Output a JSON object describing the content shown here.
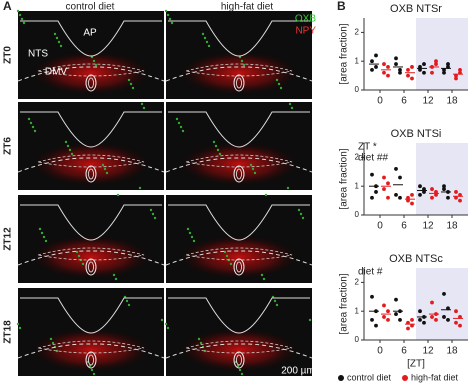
{
  "panel_a": {
    "label": "A",
    "columns": [
      "control diet",
      "high-fat diet"
    ],
    "rows": [
      "ZT0",
      "ZT6",
      "ZT12",
      "ZT18"
    ],
    "stains": [
      "OXB",
      "NPY"
    ],
    "regions": [
      "AP",
      "NTS",
      "DMV"
    ],
    "scale_bar": "200 µm"
  },
  "panel_b": {
    "label": "B"
  },
  "chart_data": [
    {
      "type": "scatter",
      "title": "OXB NTSr",
      "y_label": "[area fraction]",
      "x": [
        0,
        6,
        12,
        18
      ],
      "xlim": [
        -4,
        22
      ],
      "ylim": [
        0,
        2.5
      ],
      "yticks": [
        0,
        1,
        2
      ],
      "shaded_x": [
        9,
        22
      ],
      "series": [
        {
          "color": "#111111",
          "values": [
            [
              1.0,
              0.8,
              0.7,
              1.2
            ],
            [
              0.9,
              0.7,
              1.1,
              0.6
            ],
            [
              0.7,
              0.6,
              0.8,
              0.9
            ],
            [
              0.7,
              0.9,
              0.6,
              0.8
            ]
          ],
          "means": [
            0.9,
            0.8,
            0.75,
            0.75
          ]
        },
        {
          "color": "#e41a1c",
          "values": [
            [
              0.9,
              0.5,
              0.6,
              0.8
            ],
            [
              0.7,
              0.4,
              0.5,
              0.8
            ],
            [
              0.8,
              0.9,
              0.6,
              1.0
            ],
            [
              0.4,
              0.6,
              0.5,
              0.7
            ]
          ],
          "means": [
            0.7,
            0.6,
            0.8,
            0.55
          ]
        }
      ]
    },
    {
      "type": "scatter",
      "title": "OXB NTSi",
      "y_label": "[area fraction]",
      "annotations": [
        "ZT *",
        "diet ##"
      ],
      "x": [
        0,
        6,
        12,
        18
      ],
      "xlim": [
        -4,
        22
      ],
      "ylim": [
        0,
        2.5
      ],
      "yticks": [
        0,
        1,
        2
      ],
      "shaded_x": [
        9,
        22
      ],
      "series": [
        {
          "color": "#111111",
          "values": [
            [
              1.4,
              1.0,
              0.6,
              0.8
            ],
            [
              1.6,
              1.3,
              0.7,
              0.6
            ],
            [
              1.0,
              0.9,
              0.7,
              0.8
            ],
            [
              1.0,
              0.8,
              0.9,
              0.6
            ]
          ],
          "means": [
            1.0,
            1.05,
            0.85,
            0.8
          ]
        },
        {
          "color": "#e41a1c",
          "values": [
            [
              1.3,
              1.1,
              0.9,
              0.6
            ],
            [
              0.6,
              0.4,
              0.5,
              0.7
            ],
            [
              0.9,
              0.7,
              0.6,
              0.8
            ],
            [
              0.8,
              0.5,
              0.6,
              0.7
            ]
          ],
          "means": [
            1.0,
            0.55,
            0.75,
            0.65
          ]
        }
      ]
    },
    {
      "type": "scatter",
      "title": "OXB NTSc",
      "y_label": "[area fraction]",
      "x_label": "[ZT]",
      "annotations": [
        "diet #"
      ],
      "x": [
        0,
        6,
        12,
        18
      ],
      "xlim": [
        -4,
        22
      ],
      "ylim": [
        0,
        2.5
      ],
      "yticks": [
        0,
        1,
        2
      ],
      "shaded_x": [
        9,
        22
      ],
      "series": [
        {
          "name": "control diet",
          "color": "#111111",
          "values": [
            [
              1.5,
              1.0,
              0.7,
              0.5
            ],
            [
              1.4,
              1.0,
              0.9,
              0.7
            ],
            [
              1.0,
              0.8,
              0.7,
              0.6
            ],
            [
              1.6,
              1.1,
              0.8,
              0.7
            ]
          ],
          "means": [
            1.0,
            1.0,
            0.8,
            1.05
          ]
        },
        {
          "name": "high-fat diet",
          "color": "#e41a1c",
          "values": [
            [
              1.2,
              1.0,
              0.8,
              0.7
            ],
            [
              0.6,
              0.5,
              0.4,
              0.7
            ],
            [
              1.3,
              0.9,
              0.8,
              0.7
            ],
            [
              1.0,
              0.8,
              0.6,
              0.5
            ]
          ],
          "means": [
            0.9,
            0.55,
            0.9,
            0.75
          ]
        }
      ]
    }
  ]
}
